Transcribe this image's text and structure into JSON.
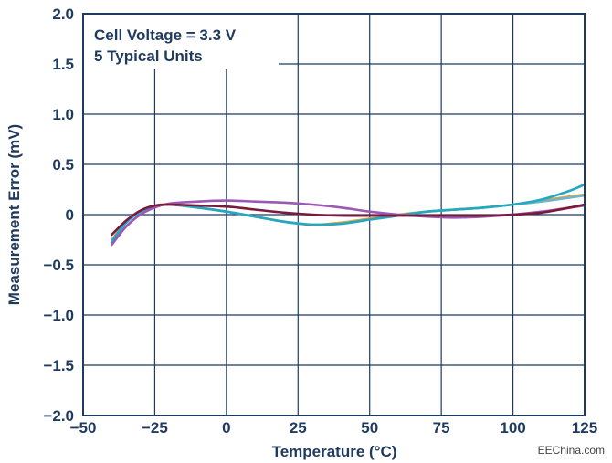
{
  "chart_data": {
    "type": "line",
    "xlabel": "Temperature (°C)",
    "ylabel": "Measurement Error (mV)",
    "xlim": [
      -50,
      125
    ],
    "ylim": [
      -2.0,
      2.0
    ],
    "x_ticks": [
      -50,
      -25,
      0,
      25,
      50,
      75,
      100,
      125
    ],
    "x_tick_labels": [
      "−50",
      "−25",
      "0",
      "25",
      "50",
      "75",
      "100",
      "125"
    ],
    "y_ticks": [
      2.0,
      1.5,
      1.0,
      0.5,
      0,
      -0.5,
      -1.0,
      -1.5,
      -2.0
    ],
    "y_tick_labels": [
      "2.0",
      "1.5",
      "1.0",
      "0.5",
      "0",
      "−0.5",
      "−1.0",
      "−1.5",
      "−2.0"
    ],
    "grid": true,
    "annotations": [
      "Cell Voltage = 3.3 V",
      "5 Typical Units"
    ],
    "series": [
      {
        "color": "#e8a03a",
        "x": [
          -40,
          -35,
          -30,
          -25,
          -20,
          -10,
          0,
          10,
          20,
          30,
          40,
          50,
          60,
          70,
          80,
          90,
          100,
          110,
          120,
          125
        ],
        "y": [
          -0.25,
          -0.07,
          0.04,
          0.09,
          0.1,
          0.07,
          0.03,
          -0.02,
          -0.07,
          -0.1,
          -0.08,
          -0.04,
          0.0,
          0.03,
          0.05,
          0.07,
          0.1,
          0.14,
          0.18,
          0.2
        ]
      },
      {
        "color": "#6fb4c8",
        "x": [
          -40,
          -35,
          -30,
          -25,
          -20,
          -10,
          0,
          10,
          20,
          30,
          40,
          50,
          60,
          70,
          80,
          90,
          100,
          110,
          120,
          125
        ],
        "y": [
          -0.26,
          -0.08,
          0.03,
          0.08,
          0.1,
          0.07,
          0.03,
          -0.02,
          -0.07,
          -0.1,
          -0.09,
          -0.05,
          -0.01,
          0.03,
          0.05,
          0.07,
          0.1,
          0.13,
          0.17,
          0.19
        ]
      },
      {
        "color": "#22a8c0",
        "x": [
          -40,
          -35,
          -30,
          -25,
          -20,
          -10,
          0,
          10,
          20,
          30,
          40,
          50,
          60,
          70,
          80,
          90,
          100,
          110,
          120,
          125
        ],
        "y": [
          -0.27,
          -0.08,
          0.03,
          0.08,
          0.1,
          0.07,
          0.03,
          -0.02,
          -0.07,
          -0.1,
          -0.09,
          -0.05,
          -0.01,
          0.03,
          0.05,
          0.07,
          0.1,
          0.15,
          0.24,
          0.3
        ]
      },
      {
        "color": "#9b59b6",
        "x": [
          -40,
          -35,
          -30,
          -25,
          -20,
          -10,
          0,
          10,
          20,
          30,
          40,
          50,
          60,
          70,
          80,
          90,
          100,
          110,
          120,
          125
        ],
        "y": [
          -0.3,
          -0.12,
          0.0,
          0.07,
          0.11,
          0.13,
          0.14,
          0.13,
          0.12,
          0.1,
          0.07,
          0.03,
          0.0,
          -0.02,
          -0.03,
          -0.02,
          0.0,
          0.03,
          0.07,
          0.09
        ]
      },
      {
        "color": "#7a1a3c",
        "x": [
          -40,
          -35,
          -30,
          -25,
          -20,
          -10,
          0,
          10,
          20,
          30,
          40,
          50,
          60,
          70,
          80,
          90,
          100,
          110,
          120,
          125
        ],
        "y": [
          -0.2,
          -0.06,
          0.04,
          0.09,
          0.1,
          0.09,
          0.08,
          0.05,
          0.02,
          0.0,
          -0.01,
          -0.01,
          -0.01,
          -0.01,
          -0.01,
          -0.01,
          0.0,
          0.02,
          0.07,
          0.1
        ]
      }
    ]
  },
  "watermark": "EEChina.com"
}
